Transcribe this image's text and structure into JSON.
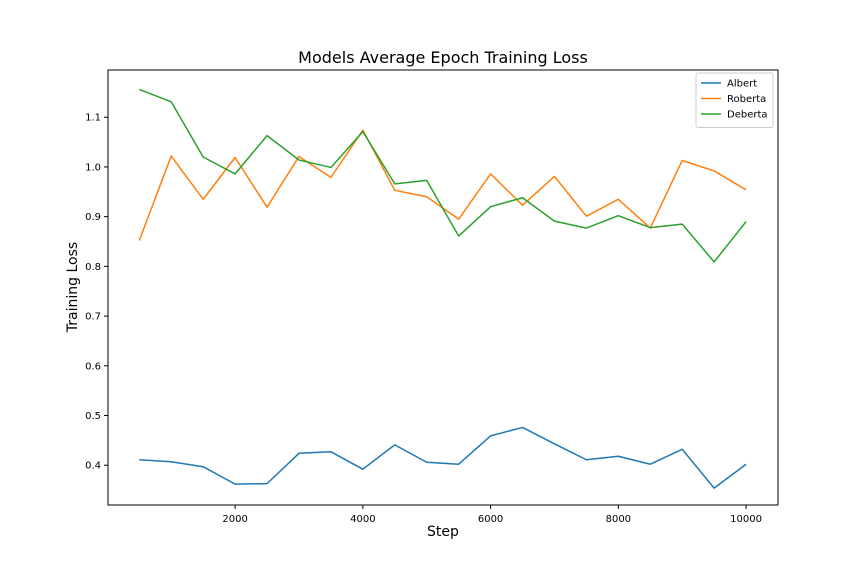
{
  "chart_data": {
    "type": "line",
    "title": "Models Average Epoch Training Loss",
    "xlabel": "Step",
    "ylabel": "Training Loss",
    "xlim": [
      10,
      10500
    ],
    "ylim": [
      0.32,
      1.195
    ],
    "xticks": [
      2000,
      4000,
      6000,
      8000,
      10000
    ],
    "xtick_labels": [
      "2000",
      "4000",
      "6000",
      "8000",
      "10000"
    ],
    "yticks": [
      0.4,
      0.5,
      0.6,
      0.7,
      0.8,
      0.9,
      1.0,
      1.1
    ],
    "ytick_labels": [
      "0.4",
      "0.5",
      "0.6",
      "0.7",
      "0.8",
      "0.9",
      "1.0",
      "1.1"
    ],
    "grid": false,
    "legend_position": "top-right",
    "x": [
      500,
      1000,
      1500,
      2000,
      2500,
      3000,
      3500,
      4000,
      4500,
      5000,
      5500,
      6000,
      6500,
      7000,
      7500,
      8000,
      8500,
      9000,
      9500,
      10000
    ],
    "series": [
      {
        "name": "Albert",
        "color": "#1f77b4",
        "values": [
          0.411,
          0.407,
          0.397,
          0.362,
          0.363,
          0.424,
          0.427,
          0.392,
          0.441,
          0.406,
          0.402,
          0.459,
          0.476,
          0.443,
          0.411,
          0.418,
          0.402,
          0.432,
          0.354,
          0.402
        ]
      },
      {
        "name": "Roberta",
        "color": "#ff7f0e",
        "values": [
          0.852,
          1.022,
          0.935,
          1.019,
          0.919,
          1.021,
          0.979,
          1.074,
          0.953,
          0.94,
          0.895,
          0.986,
          0.923,
          0.981,
          0.901,
          0.935,
          0.877,
          1.013,
          0.992,
          0.954
        ]
      },
      {
        "name": "Deberta",
        "color": "#2ca02c",
        "values": [
          1.156,
          1.131,
          1.02,
          0.986,
          1.063,
          1.014,
          0.999,
          1.071,
          0.966,
          0.973,
          0.861,
          0.92,
          0.938,
          0.891,
          0.877,
          0.902,
          0.878,
          0.885,
          0.809,
          0.89
        ]
      }
    ]
  }
}
